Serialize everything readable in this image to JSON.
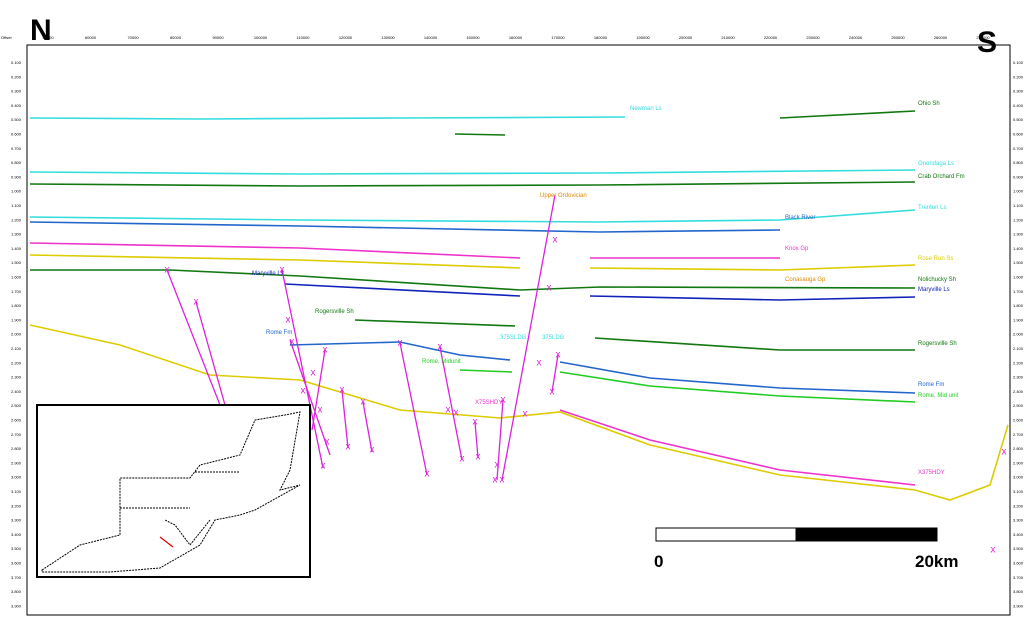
{
  "header": {
    "north": "N",
    "south": "S",
    "offset_label": "Offset"
  },
  "top_ticks": [
    "50000",
    "60000",
    "70000",
    "80000",
    "90000",
    "100000",
    "110000",
    "120000",
    "130000",
    "140000",
    "150000",
    "160000",
    "170000",
    "180000",
    "190000",
    "200000",
    "210000",
    "220000",
    "230000",
    "240000",
    "250000",
    "260000",
    "270000"
  ],
  "left_ticks": [
    "0.100",
    "0.200",
    "0.300",
    "0.400",
    "0.500",
    "0.600",
    "0.700",
    "0.800",
    "0.900",
    "1.000",
    "1.100",
    "1.200",
    "1.300",
    "1.400",
    "1.500",
    "1.600",
    "1.700",
    "1.800",
    "1.900",
    "2.000",
    "2.100",
    "2.200",
    "2.300",
    "2.400",
    "2.500",
    "2.600",
    "2.700",
    "2.800",
    "2.900",
    "3.000",
    "3.100",
    "3.200",
    "3.300",
    "3.400",
    "3.500",
    "3.600",
    "3.700",
    "3.800",
    "3.900"
  ],
  "horizons": [
    {
      "label": "Newman Ls",
      "color": "#33dddd"
    },
    {
      "label": "Ohio Sh",
      "color": "#117711"
    },
    {
      "label": "Onondaga Ls",
      "color": "#33dddd"
    },
    {
      "label": "Crab Orchard Fm",
      "color": "#117711"
    },
    {
      "label": "Trenton Ls",
      "color": "#33dddd"
    },
    {
      "label": "Black River",
      "color": "#2266cc"
    },
    {
      "label": "Knox Gp",
      "color": "#ee33cc"
    },
    {
      "label": "Rose Run Ss",
      "color": "#ddcc00"
    },
    {
      "label": "Conasauga Gp",
      "color": "#dd8800"
    },
    {
      "label": "Nolichucky Sh",
      "color": "#117711"
    },
    {
      "label": "Maryville Ls",
      "color": "#1122bb"
    },
    {
      "label": "Rogersville Sh",
      "color": "#117711"
    },
    {
      "label": "Rome Fm",
      "color": "#2266cc"
    },
    {
      "label": "Rome, Mid unit",
      "color": "#22cc22"
    },
    {
      "label": "X375HDY",
      "color": "#ee33cc"
    }
  ],
  "inline_labels": [
    {
      "label": "Upper Ordovician",
      "color": "#dd8800"
    },
    {
      "label": "Maryville Ls",
      "color": "#1122bb"
    },
    {
      "label": "Rome Fm",
      "color": "#2266cc"
    },
    {
      "label": "Rogersville Sh",
      "color": "#117711"
    },
    {
      "label": "Rome, Midunit",
      "color": "#22cc22"
    },
    {
      "label": "375SLDG",
      "color": "#33dddd"
    },
    {
      "label": "375LDG",
      "color": "#33dddd"
    },
    {
      "label": "X75SHDY",
      "color": "#ee33cc"
    }
  ],
  "scale": {
    "start": "0",
    "end": "20km"
  }
}
